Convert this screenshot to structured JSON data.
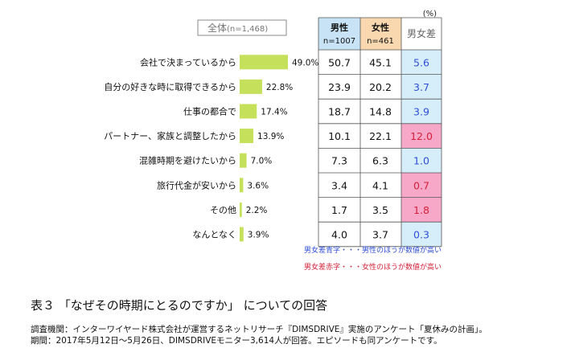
{
  "chart_data": {
    "type": "bar",
    "unit_label": "(%)",
    "overall_header": "全体",
    "overall_n": "(n=1,468)",
    "columns": {
      "male": {
        "label": "男性",
        "n": "n=1007"
      },
      "female": {
        "label": "女性",
        "n": "n=461"
      },
      "diff": {
        "label": "男女差"
      }
    },
    "categories": [
      "会社で決まっているから",
      "自分の好きな時に取得できるから",
      "仕事の都合で",
      "パートナー、家族と調整したから",
      "混雑時期を避けたいから",
      "旅行代金が安いから",
      "その他",
      "なんとなく"
    ],
    "values": [
      49.0,
      22.8,
      17.4,
      13.9,
      7.0,
      3.6,
      2.2,
      3.9
    ],
    "value_labels": [
      "49.0%",
      "22.8%",
      "17.4%",
      "13.9%",
      "7.0%",
      "3.6%",
      "2.2%",
      "3.9%"
    ],
    "male": [
      "50.7",
      "23.9",
      "18.7",
      "10.1",
      "7.3",
      "3.4",
      "1.7",
      "4.0"
    ],
    "female": [
      "45.1",
      "20.2",
      "14.8",
      "22.1",
      "6.3",
      "4.1",
      "3.5",
      "3.7"
    ],
    "diff": [
      "5.6",
      "3.7",
      "3.9",
      "12.0",
      "1.0",
      "0.7",
      "1.8",
      "0.3"
    ],
    "diff_side": [
      "male",
      "male",
      "male",
      "female",
      "male",
      "female",
      "female",
      "male"
    ],
    "xlim": [
      0,
      100
    ],
    "legend_blue": "男女差青字・・・男性のほうが数値が高い",
    "legend_red": "男女差赤字・・・女性のほうが数値が高い",
    "colors": {
      "bar": "#c5e05a",
      "male_header": "#c8e3f5",
      "female_header": "#f9d8b0",
      "diff_header": "#ffffff",
      "blue_cell": "#d6eefa",
      "red_cell": "#f7a7c8",
      "blue_text": "#2f4fd6",
      "red_text": "#d3223a"
    }
  },
  "caption": {
    "prefix": "表３",
    "title": "「なぜその時期にとるのですか」 についての回答"
  },
  "source": {
    "line1": "調査機関：インターワイヤード株式会社が運営するネットリサーチ『DIMSDRIVE』実施のアンケート「夏休みの計画」。",
    "line2": "期間：2017年5月12日～5月26日、DIMSDRIVEモニター3,614人が回答。エピソードも同アンケートです。"
  }
}
